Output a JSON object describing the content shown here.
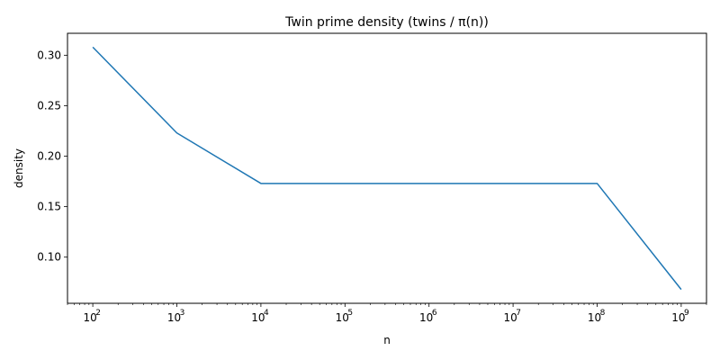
{
  "chart_data": {
    "type": "line",
    "title": "Twin prime density (twins / π(n))",
    "xlabel": "n",
    "ylabel": "density",
    "xscale": "log",
    "xlim": [
      50,
      2000000000
    ],
    "ylim": [
      0.0543,
      0.3217
    ],
    "grid": false,
    "legend": "none",
    "x": [
      100,
      1000,
      10000,
      100000,
      1000000,
      10000000,
      100000000,
      1000000000
    ],
    "series": [
      {
        "values": [
          0.308,
          0.223,
          0.173,
          0.173,
          0.173,
          0.173,
          0.173,
          0.068
        ],
        "color": "#1f77b4"
      }
    ],
    "xticks": [
      {
        "base": "10",
        "exp": "2",
        "value": 100
      },
      {
        "base": "10",
        "exp": "3",
        "value": 1000
      },
      {
        "base": "10",
        "exp": "4",
        "value": 10000
      },
      {
        "base": "10",
        "exp": "5",
        "value": 100000
      },
      {
        "base": "10",
        "exp": "6",
        "value": 1000000
      },
      {
        "base": "10",
        "exp": "7",
        "value": 10000000
      },
      {
        "base": "10",
        "exp": "8",
        "value": 100000000
      },
      {
        "base": "10",
        "exp": "9",
        "value": 1000000000
      }
    ],
    "yticks": [
      {
        "label": "0.10",
        "value": 0.1
      },
      {
        "label": "0.15",
        "value": 0.15
      },
      {
        "label": "0.20",
        "value": 0.2
      },
      {
        "label": "0.25",
        "value": 0.25
      },
      {
        "label": "0.30",
        "value": 0.3
      }
    ]
  }
}
